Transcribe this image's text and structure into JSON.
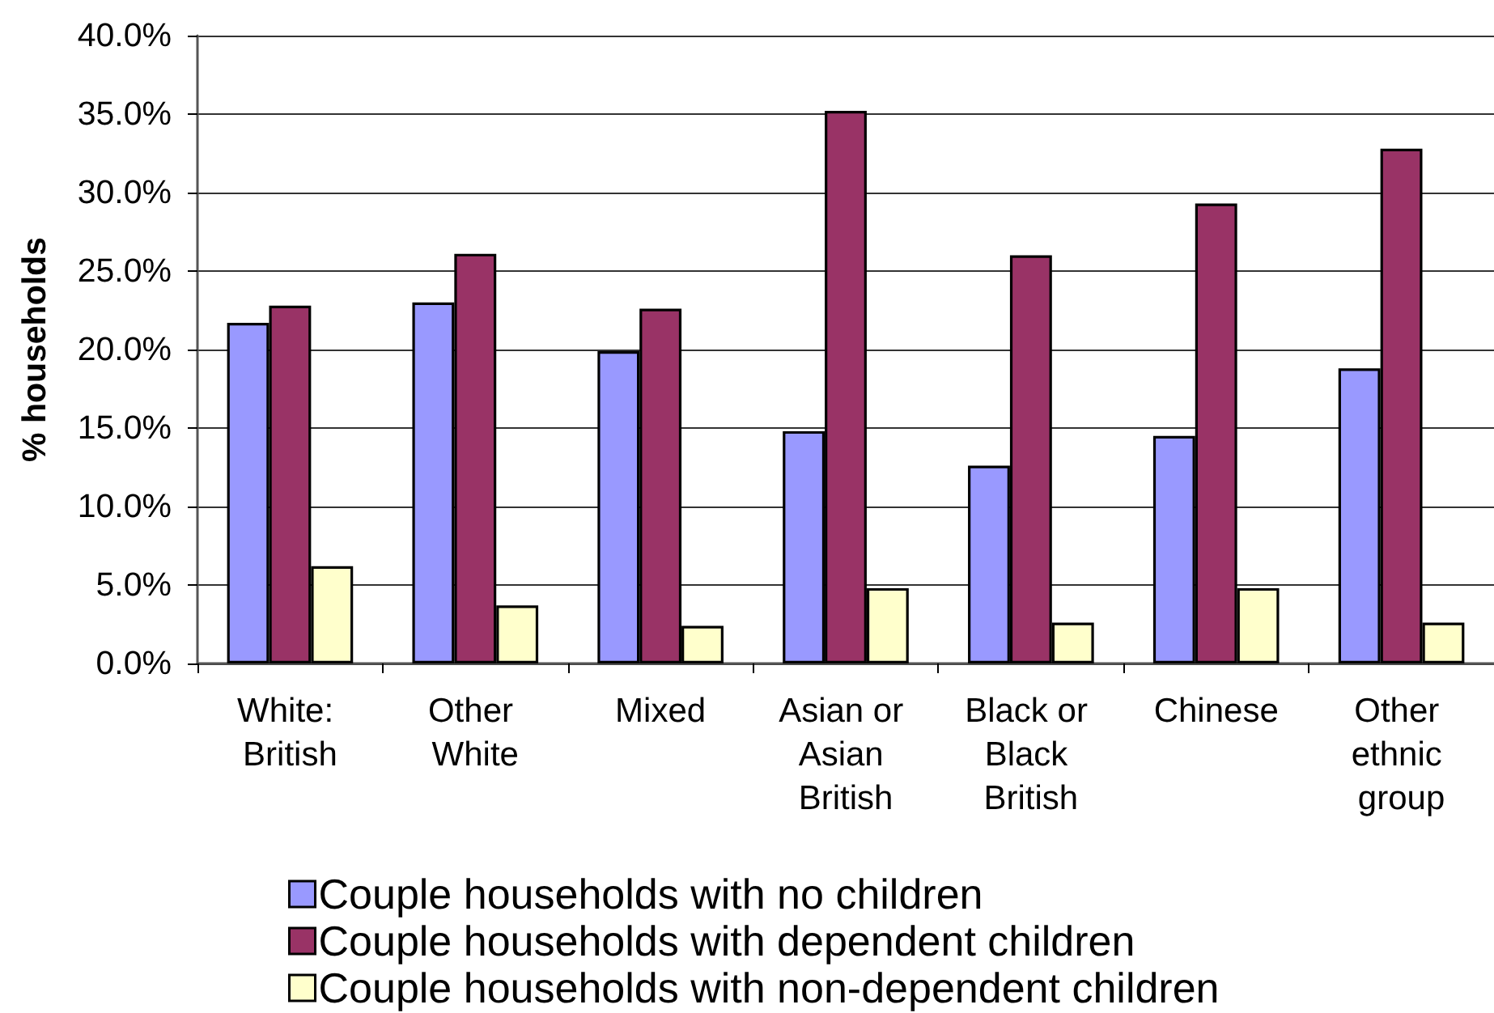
{
  "chart_data": {
    "type": "bar",
    "ylabel": "% households",
    "categories": [
      "White: British",
      "Other White",
      "Mixed",
      "Asian or Asian British",
      "Black or Black British",
      "Chinese",
      "Other ethnic group"
    ],
    "series": [
      {
        "name": "Couple households with no children",
        "color": "#9999ff",
        "values": [
          21.7,
          23.0,
          19.9,
          14.8,
          12.6,
          14.5,
          18.8
        ]
      },
      {
        "name": "Couple households with dependent children",
        "color": "#993366",
        "values": [
          22.8,
          26.1,
          22.6,
          35.2,
          26.0,
          29.3,
          32.8
        ]
      },
      {
        "name": "Couple households with non-dependent children",
        "color": "#ffffcc",
        "values": [
          6.2,
          3.7,
          2.4,
          4.8,
          2.6,
          4.8,
          2.6
        ]
      }
    ],
    "ylim": [
      0,
      40
    ],
    "yticks": [
      {
        "value": 0,
        "label": "0.0%"
      },
      {
        "value": 5,
        "label": "5.0%"
      },
      {
        "value": 10,
        "label": "10.0%"
      },
      {
        "value": 15,
        "label": "15.0%"
      },
      {
        "value": 20,
        "label": "20.0%"
      },
      {
        "value": 25,
        "label": "25.0%"
      },
      {
        "value": 30,
        "label": "30.0%"
      },
      {
        "value": 35,
        "label": "35.0%"
      },
      {
        "value": 40,
        "label": "40.0%"
      }
    ],
    "grid": "y",
    "legend": "bottom"
  }
}
